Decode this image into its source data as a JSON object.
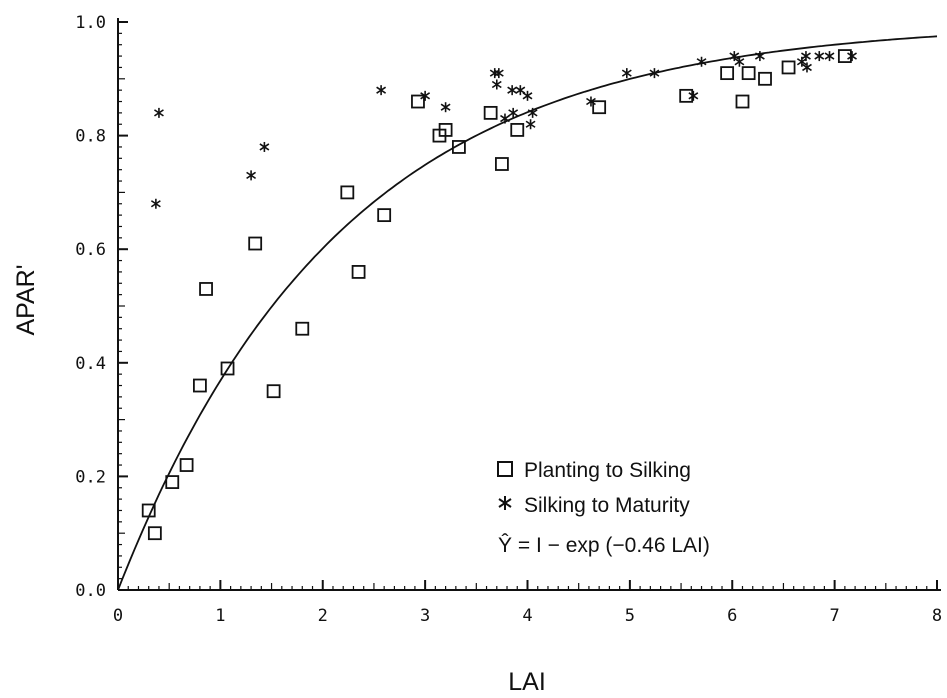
{
  "chart_data": {
    "type": "scatter",
    "xlabel": "LAI",
    "ylabel": "APAR'",
    "xlim": [
      0,
      8
    ],
    "ylim": [
      0,
      1.0
    ],
    "x_ticks": [
      "0",
      "1",
      "2",
      "3",
      "4",
      "5",
      "6",
      "7",
      "8"
    ],
    "y_ticks": [
      "0.0",
      "0.2",
      "0.4",
      "0.6",
      "0.8",
      "1.0"
    ],
    "grid": false,
    "legend_position": "bottom-right",
    "series": [
      {
        "name": "Planting to Silking",
        "marker": "square",
        "points": [
          [
            0.3,
            0.14
          ],
          [
            0.36,
            0.1
          ],
          [
            0.53,
            0.19
          ],
          [
            0.67,
            0.22
          ],
          [
            0.8,
            0.36
          ],
          [
            0.86,
            0.53
          ],
          [
            1.07,
            0.39
          ],
          [
            1.34,
            0.61
          ],
          [
            1.52,
            0.35
          ],
          [
            1.8,
            0.46
          ],
          [
            2.24,
            0.7
          ],
          [
            2.35,
            0.56
          ],
          [
            2.6,
            0.66
          ],
          [
            2.93,
            0.86
          ],
          [
            3.14,
            0.8
          ],
          [
            3.2,
            0.81
          ],
          [
            3.33,
            0.78
          ],
          [
            3.64,
            0.84
          ],
          [
            3.75,
            0.75
          ],
          [
            3.9,
            0.81
          ],
          [
            4.7,
            0.85
          ],
          [
            5.55,
            0.87
          ],
          [
            5.95,
            0.91
          ],
          [
            6.1,
            0.86
          ],
          [
            6.16,
            0.91
          ],
          [
            6.32,
            0.9
          ],
          [
            6.55,
            0.92
          ],
          [
            7.1,
            0.94
          ]
        ]
      },
      {
        "name": "Silking to Maturity",
        "marker": "asterisk",
        "points": [
          [
            0.37,
            0.68
          ],
          [
            0.4,
            0.84
          ],
          [
            1.3,
            0.73
          ],
          [
            1.43,
            0.78
          ],
          [
            2.57,
            0.88
          ],
          [
            3.0,
            0.87
          ],
          [
            3.2,
            0.85
          ],
          [
            3.68,
            0.91
          ],
          [
            3.72,
            0.91
          ],
          [
            3.7,
            0.89
          ],
          [
            3.78,
            0.83
          ],
          [
            3.85,
            0.88
          ],
          [
            3.86,
            0.84
          ],
          [
            3.93,
            0.88
          ],
          [
            4.0,
            0.87
          ],
          [
            4.03,
            0.82
          ],
          [
            4.05,
            0.84
          ],
          [
            4.62,
            0.86
          ],
          [
            4.97,
            0.91
          ],
          [
            5.24,
            0.91
          ],
          [
            5.62,
            0.87
          ],
          [
            5.7,
            0.93
          ],
          [
            6.02,
            0.94
          ],
          [
            6.07,
            0.93
          ],
          [
            6.27,
            0.94
          ],
          [
            6.68,
            0.93
          ],
          [
            6.72,
            0.94
          ],
          [
            6.73,
            0.92
          ],
          [
            6.85,
            0.94
          ],
          [
            6.95,
            0.94
          ],
          [
            7.17,
            0.94
          ]
        ]
      },
      {
        "name": "Ŷ = I − exp (−0.46 LAI)",
        "type": "line",
        "function": "1-exp(-0.46*x)",
        "x_range": [
          0,
          8
        ]
      }
    ]
  },
  "legend": {
    "item1": "Planting to Silking",
    "item2": "Silking to Maturity",
    "item3": "Ŷ = I − exp (−0.46 LAI)"
  }
}
